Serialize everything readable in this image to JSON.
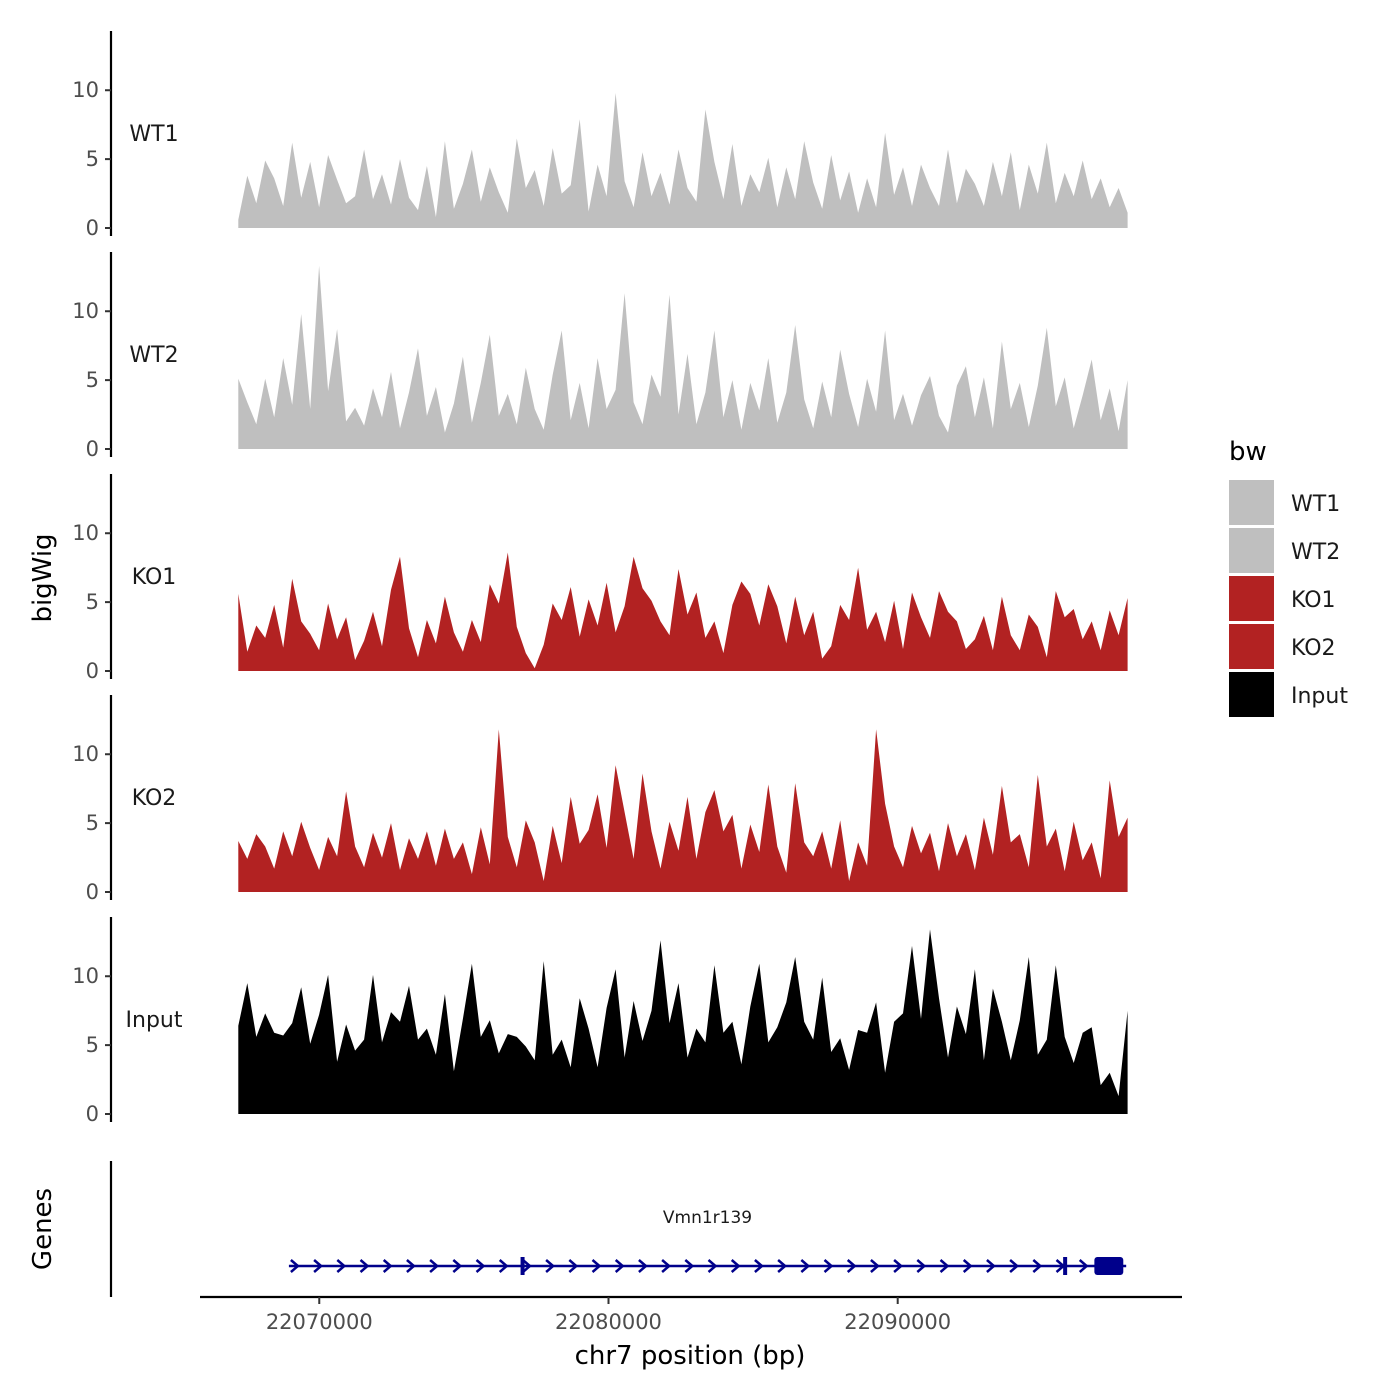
{
  "chart_data": {
    "type": "area",
    "y_axis_title": "bigWig",
    "x_axis_title": "chr7 position (bp)",
    "genes_panel_title": "Genes",
    "x_range": [
      22065876,
      22099830
    ],
    "x_ticks": [
      22070000,
      22080000,
      22090000
    ],
    "x_tick_labels": [
      "22070000",
      "22080000",
      "22090000"
    ],
    "y_range": [
      0,
      14.3
    ],
    "y_ticks": [
      0,
      5,
      10
    ],
    "y_tick_labels": [
      "0",
      "5",
      "10"
    ],
    "x_start": 22067200,
    "x_end": 22097950,
    "n_points": 100,
    "legend": {
      "title": "bw",
      "position": "right",
      "entries": [
        {
          "label": "WT1",
          "color": "#bfbfbf"
        },
        {
          "label": "WT2",
          "color": "#bfbfbf"
        },
        {
          "label": "KO1",
          "color": "#b22222"
        },
        {
          "label": "KO2",
          "color": "#b22222"
        },
        {
          "label": "Input",
          "color": "#000000"
        }
      ]
    },
    "series": [
      {
        "name": "WT1",
        "label": "WT1",
        "color": "#bfbfbf",
        "values": [
          0.6,
          3.8,
          1.8,
          4.9,
          3.6,
          1.6,
          6.2,
          2.2,
          4.8,
          1.5,
          5.3,
          3.5,
          1.8,
          2.3,
          5.7,
          2.1,
          3.9,
          1.7,
          5.0,
          2.2,
          1.3,
          4.5,
          0.8,
          6.3,
          1.4,
          3.2,
          5.7,
          1.9,
          4.4,
          2.6,
          1.1,
          6.5,
          2.9,
          4.2,
          1.6,
          5.8,
          2.5,
          3.1,
          7.9,
          1.2,
          4.6,
          2.3,
          9.8,
          3.4,
          1.5,
          5.5,
          2.3,
          4.0,
          1.7,
          5.7,
          2.9,
          1.9,
          8.6,
          4.8,
          2.1,
          6.1,
          1.6,
          3.9,
          2.6,
          5.1,
          1.5,
          4.4,
          2.1,
          6.3,
          3.3,
          1.4,
          5.3,
          2.0,
          4.1,
          1.1,
          3.6,
          1.5,
          6.9,
          2.4,
          4.4,
          1.6,
          4.6,
          2.9,
          1.6,
          5.7,
          1.8,
          4.3,
          3.2,
          1.6,
          4.8,
          2.3,
          5.5,
          1.3,
          4.6,
          2.5,
          6.2,
          1.8,
          4.0,
          2.3,
          4.9,
          2.1,
          3.6,
          1.5,
          2.9,
          1.1
        ]
      },
      {
        "name": "WT2",
        "label": "WT2",
        "color": "#bfbfbf",
        "values": [
          5.1,
          3.4,
          1.8,
          5.1,
          2.3,
          6.6,
          3.2,
          9.8,
          2.9,
          13.3,
          4.2,
          8.7,
          2.0,
          3.0,
          1.7,
          4.4,
          2.3,
          5.6,
          1.5,
          4.1,
          7.3,
          2.4,
          4.5,
          1.2,
          3.3,
          6.7,
          1.9,
          4.8,
          8.3,
          2.4,
          4.0,
          1.8,
          5.9,
          2.9,
          1.4,
          5.4,
          8.6,
          2.1,
          4.8,
          1.5,
          6.6,
          2.9,
          4.3,
          11.3,
          3.4,
          1.8,
          5.4,
          3.8,
          11.2,
          2.5,
          6.9,
          1.8,
          4.1,
          8.6,
          2.3,
          5.0,
          1.4,
          4.8,
          2.8,
          6.6,
          1.9,
          4.1,
          9.0,
          3.6,
          1.5,
          4.9,
          2.3,
          7.2,
          4.0,
          1.6,
          5.1,
          2.7,
          8.6,
          2.1,
          4.0,
          1.7,
          3.9,
          5.3,
          2.4,
          1.2,
          4.6,
          6.0,
          2.3,
          5.2,
          1.5,
          7.8,
          2.9,
          4.8,
          1.6,
          4.6,
          8.8,
          3.1,
          5.2,
          1.5,
          3.9,
          6.5,
          2.1,
          4.4,
          1.3,
          5.0
        ]
      },
      {
        "name": "KO1",
        "label": "KO1",
        "color": "#b22222",
        "values": [
          5.6,
          1.4,
          3.3,
          2.4,
          4.8,
          1.7,
          6.7,
          3.6,
          2.7,
          1.5,
          4.9,
          2.3,
          3.9,
          0.8,
          2.2,
          4.3,
          1.8,
          5.9,
          8.3,
          3.1,
          1.0,
          3.7,
          2.0,
          5.4,
          2.8,
          1.4,
          3.7,
          2.1,
          6.3,
          4.9,
          8.6,
          3.2,
          1.3,
          0.2,
          1.9,
          4.9,
          3.7,
          6.1,
          2.5,
          5.2,
          3.3,
          6.4,
          2.8,
          4.7,
          8.3,
          6.0,
          5.1,
          3.6,
          2.6,
          7.4,
          4.1,
          5.7,
          2.4,
          3.6,
          1.3,
          4.8,
          6.5,
          5.6,
          3.3,
          6.3,
          4.7,
          2.0,
          5.4,
          2.6,
          4.3,
          0.9,
          1.8,
          4.8,
          3.7,
          7.5,
          3.0,
          4.3,
          2.1,
          5.1,
          1.6,
          5.7,
          3.9,
          2.4,
          5.8,
          4.3,
          3.6,
          1.6,
          2.3,
          4.0,
          1.5,
          5.4,
          2.6,
          1.5,
          4.1,
          3.2,
          1.0,
          5.8,
          3.9,
          4.5,
          2.3,
          3.6,
          1.5,
          4.4,
          2.6,
          5.3
        ]
      },
      {
        "name": "KO2",
        "label": "KO2",
        "color": "#b22222",
        "values": [
          3.7,
          2.4,
          4.2,
          3.3,
          1.7,
          4.4,
          2.6,
          5.1,
          3.2,
          1.6,
          4.0,
          2.6,
          7.3,
          3.3,
          1.8,
          4.3,
          2.5,
          5.0,
          1.6,
          3.9,
          2.4,
          4.4,
          1.9,
          4.6,
          2.4,
          3.6,
          1.3,
          4.7,
          2.0,
          11.8,
          4.0,
          1.8,
          5.2,
          3.6,
          0.8,
          4.8,
          2.1,
          6.9,
          3.5,
          4.5,
          7.1,
          3.2,
          9.2,
          5.8,
          2.4,
          8.6,
          4.4,
          1.7,
          5.1,
          3.0,
          6.9,
          2.4,
          5.8,
          7.4,
          4.4,
          5.6,
          1.7,
          4.9,
          2.9,
          7.8,
          3.3,
          1.4,
          7.9,
          3.6,
          2.6,
          4.4,
          1.7,
          5.2,
          0.8,
          3.6,
          1.9,
          11.8,
          6.4,
          3.3,
          1.8,
          4.8,
          2.8,
          4.3,
          1.5,
          5.0,
          2.6,
          4.2,
          1.6,
          5.4,
          2.7,
          7.7,
          3.6,
          4.2,
          1.8,
          8.5,
          3.3,
          4.6,
          1.5,
          5.1,
          2.3,
          3.6,
          1.0,
          8.1,
          4.0,
          5.4
        ]
      },
      {
        "name": "Input",
        "label": "Input",
        "color": "#000000",
        "values": [
          6.4,
          9.5,
          5.6,
          7.3,
          5.9,
          5.7,
          6.6,
          9.2,
          5.1,
          7.2,
          10.1,
          3.8,
          6.5,
          4.6,
          5.4,
          10.1,
          5.2,
          7.4,
          6.7,
          9.3,
          5.4,
          6.2,
          4.3,
          8.7,
          3.1,
          6.9,
          10.9,
          5.6,
          6.8,
          4.4,
          5.8,
          5.6,
          4.9,
          3.9,
          11.1,
          4.3,
          5.4,
          3.4,
          8.4,
          6.2,
          3.4,
          7.7,
          10.5,
          4.1,
          8.2,
          5.3,
          7.5,
          12.6,
          6.6,
          9.5,
          4.1,
          6.2,
          5.2,
          10.8,
          5.9,
          6.7,
          3.6,
          7.8,
          10.9,
          5.2,
          6.3,
          8.1,
          11.4,
          6.7,
          5.4,
          9.9,
          4.5,
          5.5,
          3.2,
          6.1,
          5.9,
          8.1,
          3.0,
          6.7,
          7.3,
          12.2,
          6.9,
          13.4,
          8.4,
          4.1,
          7.8,
          5.8,
          10.5,
          3.9,
          9.1,
          6.7,
          3.9,
          6.8,
          11.4,
          4.3,
          5.4,
          10.8,
          5.6,
          3.7,
          5.9,
          6.3,
          2.1,
          3.0,
          1.3,
          7.5
        ]
      }
    ],
    "gene": {
      "name": "Vmn1r139",
      "strand": "+",
      "start": 22068950,
      "end": 22097900,
      "color": "#00008b",
      "exons": [
        {
          "start": 22076960,
          "end": 22077020,
          "thick": false
        },
        {
          "start": 22095720,
          "end": 22095780,
          "thick": false
        },
        {
          "start": 22096800,
          "end": 22097800,
          "thick": true
        }
      ]
    }
  }
}
